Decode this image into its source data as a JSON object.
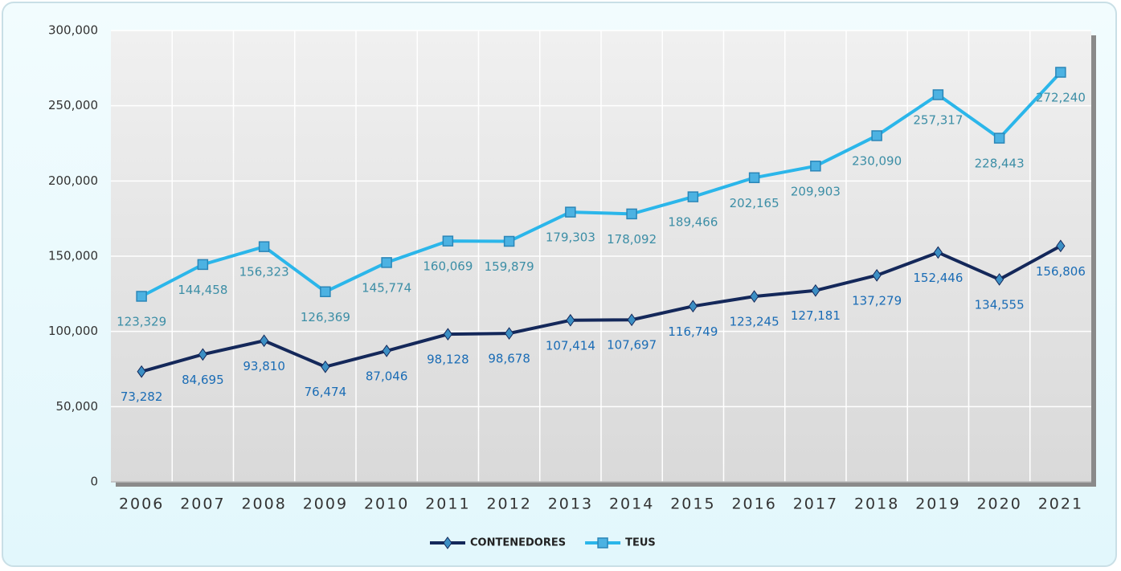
{
  "chart_data": {
    "type": "line",
    "categories": [
      "2006",
      "2007",
      "2008",
      "2009",
      "2010",
      "2011",
      "2012",
      "2013",
      "2014",
      "2015",
      "2016",
      "2017",
      "2018",
      "2019",
      "2020",
      "2021"
    ],
    "series": [
      {
        "name": "CONTENEDORES",
        "color": "#14285a",
        "marker": "diamond",
        "marker_color": "#3c8fc4",
        "values": [
          73282,
          84695,
          93810,
          76474,
          87046,
          98128,
          98678,
          107414,
          107697,
          116749,
          123245,
          127181,
          137279,
          152446,
          134555,
          156806
        ],
        "value_labels": [
          "73,282",
          "84,695",
          "93,810",
          "76,474",
          "87,046",
          "98,128",
          "98,678",
          "107,414",
          "107,697",
          "116,749",
          "123,245",
          "127,181",
          "137,279",
          "152,446",
          "134,555",
          "156,806"
        ]
      },
      {
        "name": "TEUS",
        "color": "#2bb6ea",
        "marker": "square",
        "marker_color": "#4cb2e2",
        "values": [
          123329,
          144458,
          156323,
          126369,
          145774,
          160069,
          159879,
          179303,
          178092,
          189466,
          202165,
          209903,
          230090,
          257317,
          228443,
          272240
        ],
        "value_labels": [
          "123,329",
          "144,458",
          "156,323",
          "126,369",
          "145,774",
          "160,069",
          "159,879",
          "179,303",
          "178,092",
          "189,466",
          "202,165",
          "209,903",
          "230,090",
          "257,317",
          "228,443",
          "272,240"
        ]
      }
    ],
    "ylim": [
      0,
      300000
    ],
    "yticks": [
      0,
      {
        "value": 50000,
        "label": "50,000"
      },
      {
        "value": 100000,
        "label": "100,000"
      },
      {
        "value": 150000,
        "label": "150,000"
      },
      {
        "value": 200000,
        "label": "200,000"
      },
      {
        "value": 250000,
        "label": "250,000"
      },
      {
        "value": 300000,
        "label": "300,000"
      }
    ],
    "grid": true,
    "legend": "bottom"
  }
}
